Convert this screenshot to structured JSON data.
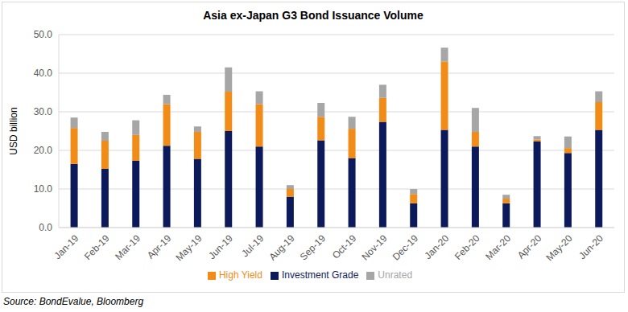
{
  "chart_data": {
    "type": "bar",
    "title": "Asia ex-Japan G3 Bond Issuance Volume",
    "y_label": "USD billion",
    "annotations": [
      "Source: BondEvalue, Bloomberg"
    ],
    "categories": [
      "Jan-19",
      "Feb-19",
      "Mar-19",
      "Apr-19",
      "May-19",
      "Jun-19",
      "Jul-19",
      "Aug-19",
      "Sep-19",
      "Oct-19",
      "Nov-19",
      "Dec-19",
      "Jan-20",
      "Feb-20",
      "Mar-20",
      "Apr-20",
      "May-20",
      "Jun-20"
    ],
    "series": [
      {
        "name": "Investment Grade",
        "color": "#0c1a5b",
        "values": [
          16.5,
          15.2,
          17.3,
          21.2,
          17.8,
          25.0,
          21.0,
          8.0,
          22.6,
          18.0,
          27.4,
          6.3,
          25.3,
          21.0,
          6.3,
          22.3,
          19.3,
          25.3
        ]
      },
      {
        "name": "High Yield",
        "color": "#f28c18",
        "values": [
          9.3,
          7.3,
          6.7,
          10.8,
          7.0,
          10.2,
          11.0,
          2.0,
          6.1,
          7.6,
          6.2,
          2.4,
          17.7,
          3.8,
          1.2,
          0.5,
          1.3,
          7.2
        ]
      },
      {
        "name": "Unrated",
        "color": "#a6a6a6",
        "values": [
          2.7,
          2.3,
          3.8,
          2.4,
          1.4,
          6.3,
          3.3,
          1.0,
          3.6,
          3.1,
          3.4,
          1.3,
          3.6,
          6.2,
          1.0,
          0.9,
          3.0,
          2.8
        ]
      }
    ],
    "ylim": [
      0,
      50
    ],
    "yticks": [
      {
        "value": 0,
        "label": "0.0"
      },
      {
        "value": 10,
        "label": "10.0"
      },
      {
        "value": 20,
        "label": "20.0"
      },
      {
        "value": 30,
        "label": "30.0"
      },
      {
        "value": 40,
        "label": "40.0"
      },
      {
        "value": 50,
        "label": "50.0"
      }
    ],
    "stacked": true,
    "grid": true,
    "legend": "bottom"
  }
}
